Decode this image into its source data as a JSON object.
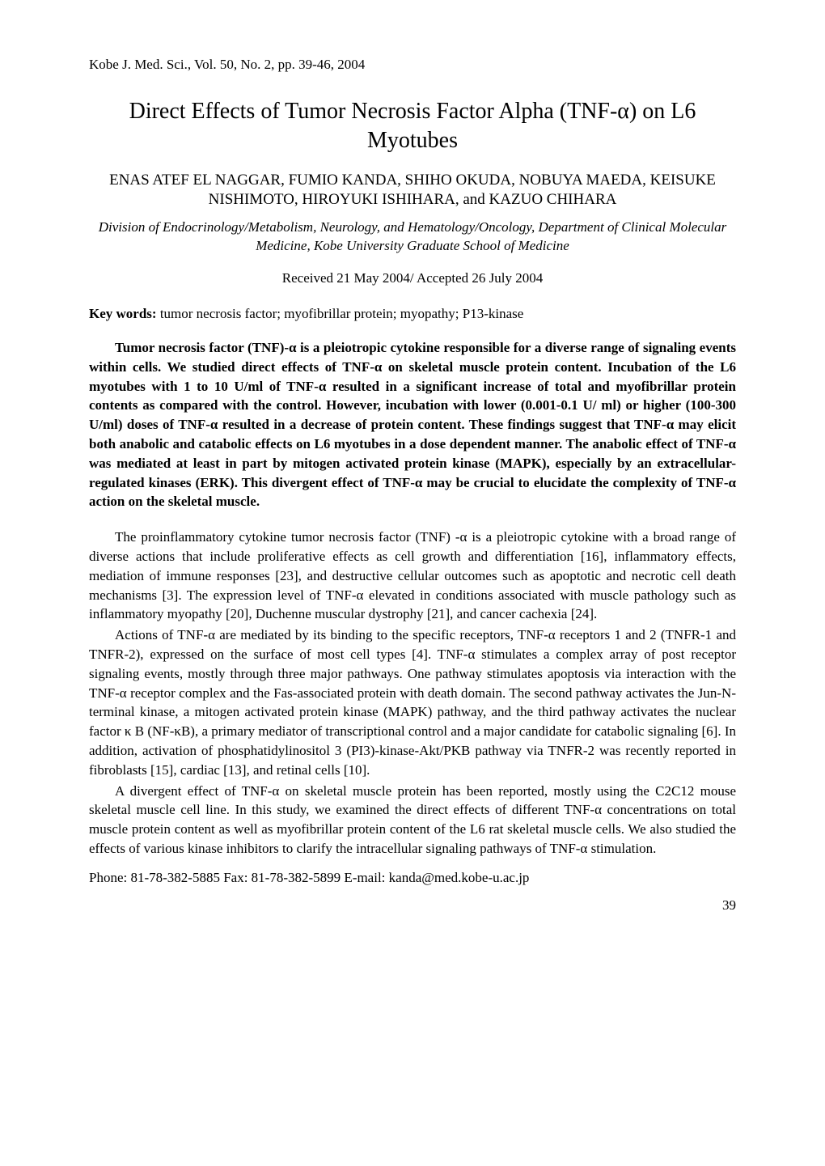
{
  "journal_header": "Kobe J. Med. Sci.,    Vol. 50, No. 2, pp. 39-46,    2004",
  "title": "Direct Effects of Tumor Necrosis Factor Alpha (TNF-α) on L6 Myotubes",
  "authors": "ENAS ATEF EL NAGGAR, FUMIO KANDA, SHIHO OKUDA, NOBUYA MAEDA, KEISUKE NISHIMOTO, HIROYUKI ISHIHARA, and KAZUO CHIHARA",
  "affiliation": "Division of Endocrinology/Metabolism, Neurology, and Hematology/Oncology, Department of Clinical Molecular Medicine, Kobe University Graduate School of Medicine",
  "received": "Received 21 May 2004/ Accepted 26 July 2004",
  "keywords_label": "Key words:",
  "keywords_text": " tumor necrosis factor; myofibrillar protein; myopathy; P13-kinase",
  "abstract": "Tumor necrosis factor (TNF)-α is a pleiotropic cytokine responsible for a diverse range of signaling events within cells. We studied direct effects of TNF-α on skeletal muscle protein content. Incubation of the L6 myotubes with 1 to 10 U/ml of TNF-α resulted in a significant increase of total and myofibrillar protein contents as compared with the control. However, incubation with lower (0.001-0.1 U/ ml) or higher (100-300 U/ml) doses of TNF-α resulted in a decrease of protein content. These findings suggest that TNF-α may elicit both anabolic and catabolic effects on L6 myotubes in a dose dependent manner. The anabolic effect of TNF-α was mediated at least in part by mitogen activated protein kinase (MAPK), especially by an extracellular-regulated kinases (ERK). This divergent effect of TNF-α may be crucial to elucidate the complexity of TNF-α action on the skeletal muscle.",
  "para1": "The proinflammatory cytokine tumor necrosis factor (TNF) -α is a pleiotropic cytokine with a broad range of diverse actions that include proliferative effects as cell growth and differentiation [16], inflammatory effects, mediation of immune responses [23], and destructive cellular outcomes such as apoptotic and necrotic cell death mechanisms [3]. The expression level of TNF-α elevated in conditions associated with muscle pathology such as inflammatory myopathy [20], Duchenne muscular dystrophy [21], and cancer cachexia [24].",
  "para2": "Actions of TNF-α are mediated by its binding to the specific receptors, TNF-α receptors 1 and 2 (TNFR-1 and TNFR-2), expressed on the surface of most cell types [4]. TNF-α stimulates a complex array of post receptor signaling events, mostly through three major pathways. One pathway stimulates apoptosis via interaction with the TNF-α receptor complex and the Fas-associated protein with death domain. The second pathway activates the Jun-N-terminal kinase, a mitogen activated protein kinase (MAPK) pathway, and the third pathway activates the nuclear factor κ B (NF-κB), a primary mediator of transcriptional control and a major candidate for catabolic signaling [6]. In addition, activation of phosphatidylinositol 3 (PI3)-kinase-Akt/PKB pathway via TNFR-2 was recently reported in fibroblasts [15], cardiac [13], and retinal cells [10].",
  "para3": "A divergent effect of TNF-α on skeletal muscle protein has been reported, mostly using the C2C12 mouse skeletal muscle cell line. In this study, we examined the direct effects of different TNF-α concentrations on total muscle protein content as well as myofibrillar protein content of the L6 rat skeletal muscle cells. We also studied the effects of various kinase inhibitors to clarify the intracellular signaling pathways of TNF-α stimulation.",
  "contact": "Phone: 81-78-382-5885    Fax: 81-78-382-5899    E-mail: kanda@med.kobe-u.ac.jp",
  "page_number": "39"
}
